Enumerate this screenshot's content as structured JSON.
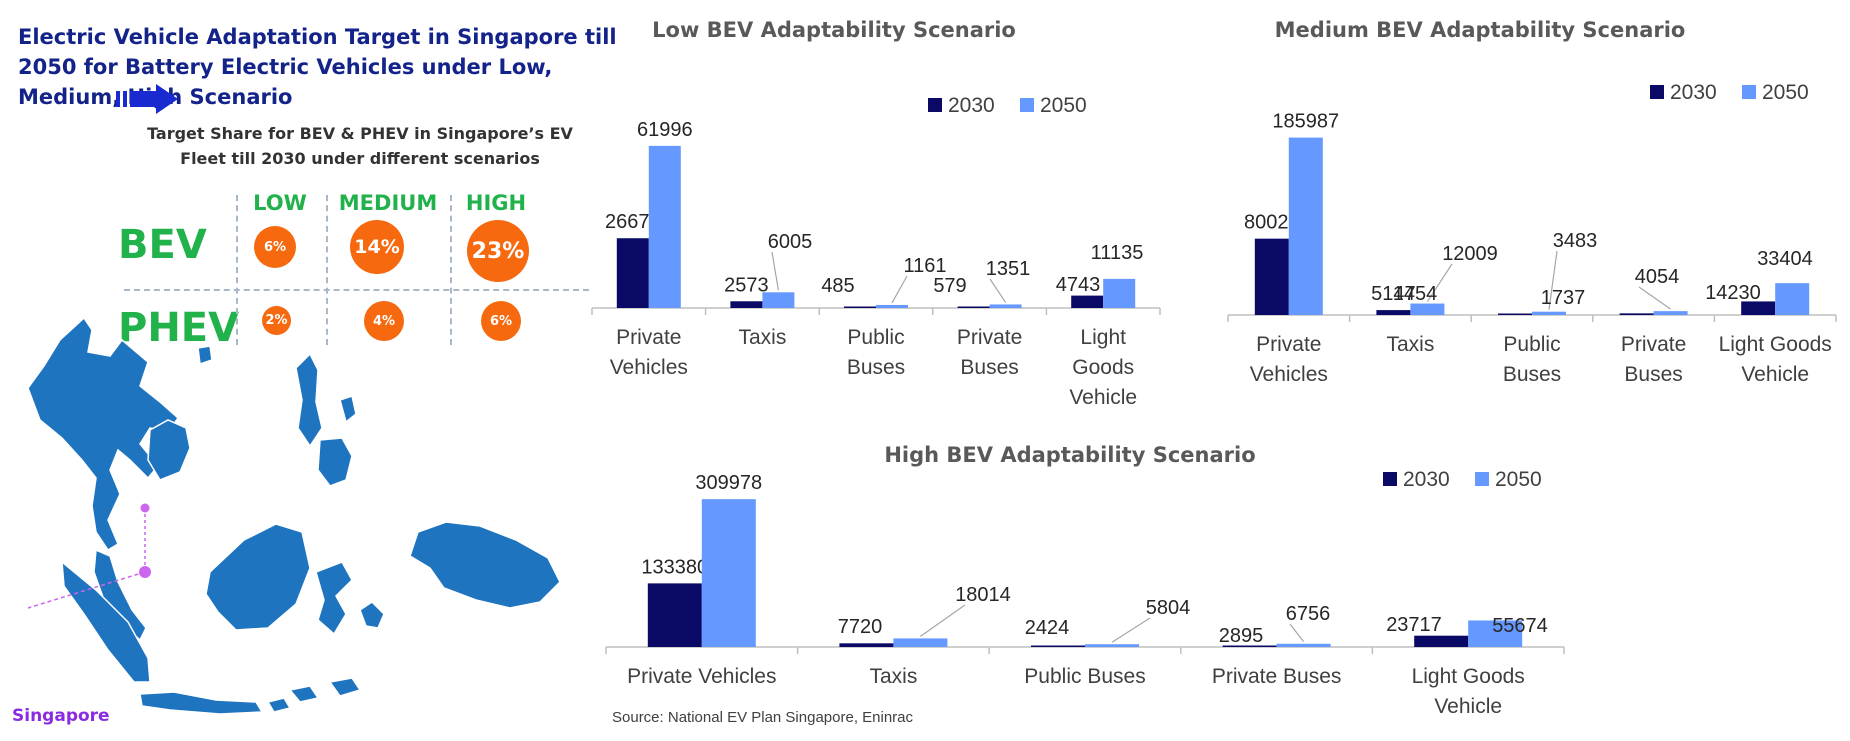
{
  "title": "Electric Vehicle Adaptation Target in Singapore till 2050 for Battery Electric Vehicles under Low, Medium, High Scenario",
  "target_share": {
    "title": "Target Share for BEV & PHEV in Singapore’s EV Fleet till 2030 under different scenarios",
    "scenarios": [
      "LOW",
      "MEDIUM",
      "HIGH"
    ],
    "rows": [
      {
        "label": "BEV",
        "values": [
          "6%",
          "14%",
          "23%"
        ]
      },
      {
        "label": "PHEV",
        "values": [
          "2%",
          "4%",
          "6%"
        ]
      }
    ]
  },
  "map": {
    "label": "Singapore"
  },
  "source": "Source: National EV Plan Singapore, Eninrac",
  "colors": {
    "s2030": "#0a0a66",
    "s2050": "#6699ff",
    "accent": "#f6690f",
    "green": "#22b24c",
    "title": "#14238a",
    "map": "#1f74c0",
    "singapore": "#cc66ee"
  },
  "chart_data": [
    {
      "type": "bar",
      "title": "Low BEV Adaptability Scenario",
      "categories": [
        "Private Vehicles",
        "Taxis",
        "Public Buses",
        "Private Buses",
        "Light Goods Vehicle"
      ],
      "series": [
        {
          "name": "2030",
          "values": [
            26676,
            2573,
            485,
            579,
            4743
          ]
        },
        {
          "name": "2050",
          "values": [
            61996,
            6005,
            1161,
            1351,
            11135
          ]
        }
      ],
      "ylim": [
        0,
        65000
      ],
      "legend": "top-right",
      "grid": false
    },
    {
      "type": "bar",
      "title": "Medium BEV Adaptability Scenario",
      "categories": [
        "Private Vehicles",
        "Taxis",
        "Public Buses",
        "Private Buses",
        "Light Goods Vehicle"
      ],
      "series": [
        {
          "name": "2030",
          "values": [
            80028,
            5147,
            1454,
            1737,
            14230
          ]
        },
        {
          "name": "2050",
          "values": [
            185987,
            12009,
            3483,
            4054,
            33404
          ]
        }
      ],
      "ylim": [
        0,
        195000
      ],
      "legend": "top-right",
      "grid": false
    },
    {
      "type": "bar",
      "title": "High BEV Adaptability Scenario",
      "categories": [
        "Private Vehicles",
        "Taxis",
        "Public Buses",
        "Private Buses",
        "Light Goods Vehicle"
      ],
      "series": [
        {
          "name": "2030",
          "values": [
            133380,
            7720,
            2424,
            2895,
            23717
          ]
        },
        {
          "name": "2050",
          "values": [
            309978,
            18014,
            5804,
            6756,
            55674
          ]
        }
      ],
      "ylim": [
        0,
        325000
      ],
      "legend": "top-right",
      "grid": false
    }
  ]
}
